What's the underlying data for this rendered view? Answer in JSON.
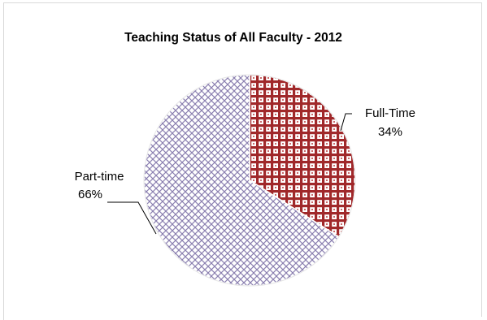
{
  "chart_data": {
    "type": "pie",
    "title": "Teaching Status of All Faculty - 2012",
    "slices": [
      {
        "label": "Full-Time",
        "value": 34,
        "pct_label": "34%",
        "color": "#a0282a",
        "pattern": "plaid"
      },
      {
        "label": "Part-time",
        "value": 66,
        "pct_label": "66%",
        "color": "#8a7fb0",
        "pattern": "crosshatch"
      }
    ],
    "start": "12 o'clock",
    "direction": "clockwise",
    "legend": "none",
    "data_labels": "outside with leader lines"
  }
}
